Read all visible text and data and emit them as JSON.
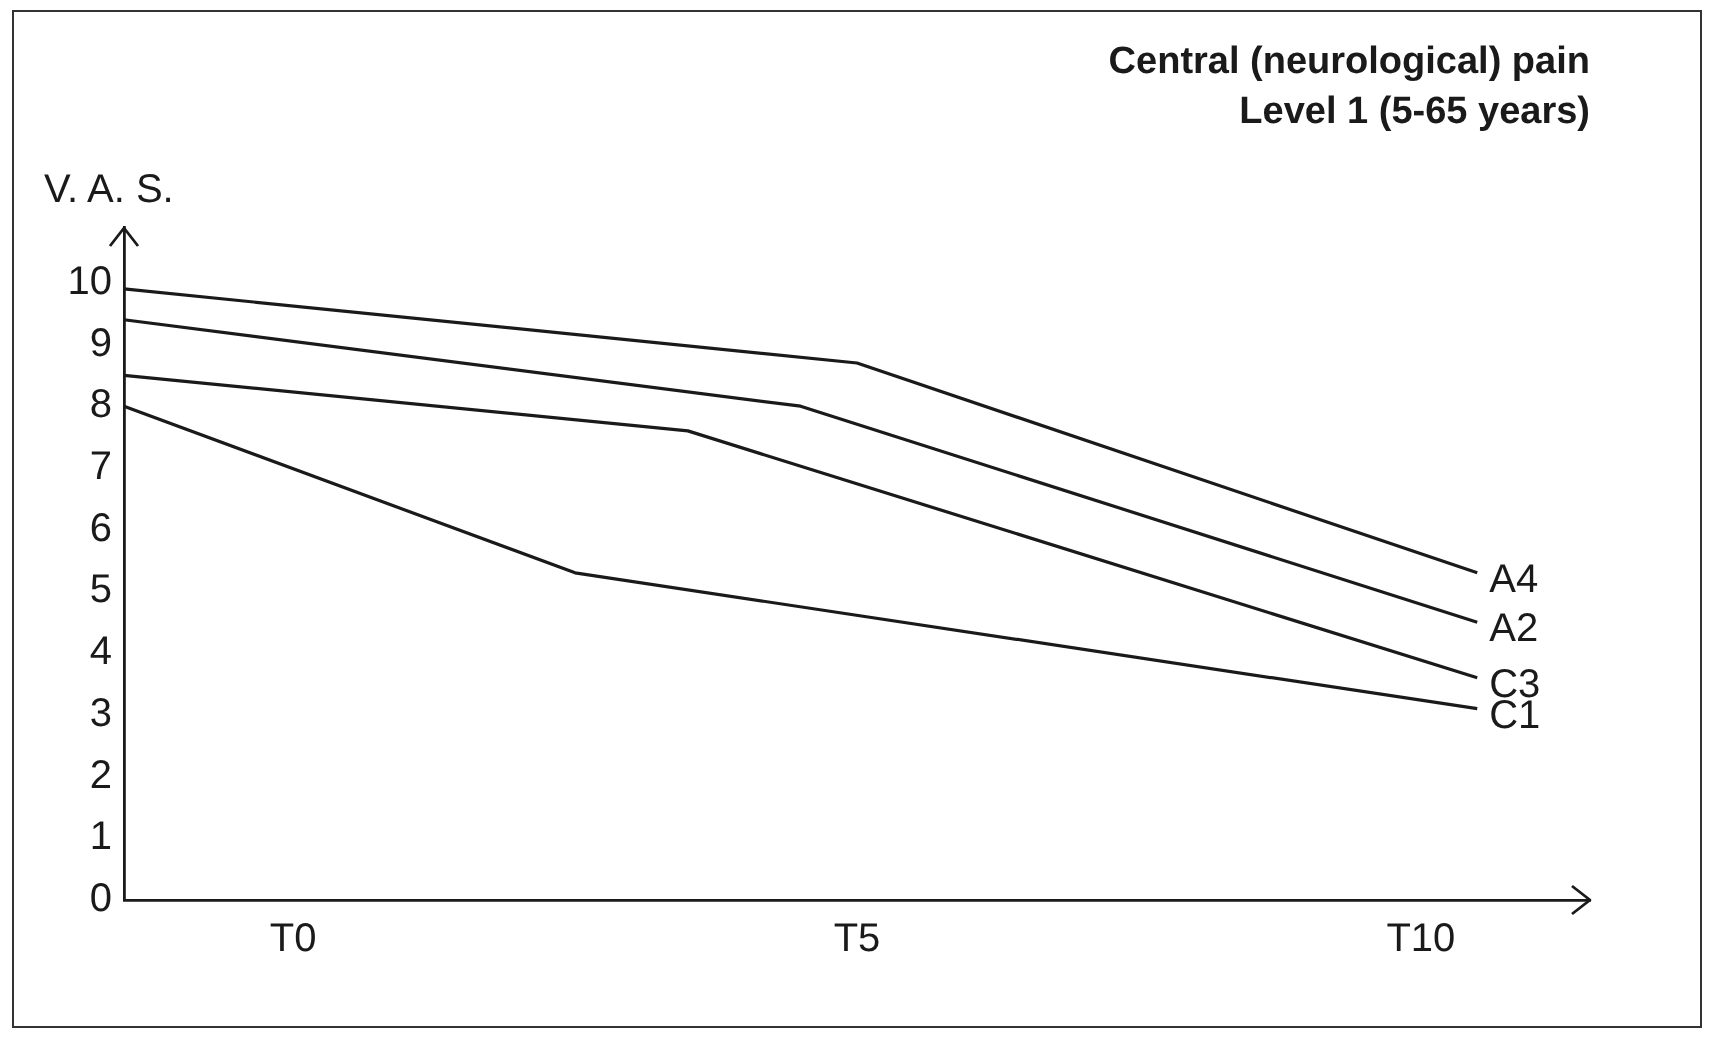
{
  "chart_data": {
    "type": "line",
    "title": "Central (neurological) pain",
    "subtitle": "Level 1 (5-65 years)",
    "ylabel": "V. A. S.",
    "categories": [
      null,
      null,
      null,
      "T0",
      null,
      null,
      null,
      null,
      null,
      null,
      null,
      null,
      null,
      "T5",
      null,
      null,
      null,
      null,
      null,
      null,
      null,
      null,
      null,
      "T10",
      null,
      null,
      null
    ],
    "ylim": [
      0,
      10.9
    ],
    "yticks": [
      0,
      1,
      2,
      3,
      4,
      5,
      6,
      7,
      8,
      9,
      10
    ],
    "grid": false,
    "legend": false,
    "marker": "none",
    "line_style": "solid",
    "series": [
      {
        "name": "A4",
        "color": "#1a1a1a",
        "values": [
          9.9,
          null,
          null,
          null,
          null,
          null,
          null,
          null,
          null,
          null,
          null,
          null,
          null,
          8.7,
          null,
          null,
          null,
          null,
          null,
          null,
          null,
          null,
          null,
          null,
          5.3,
          null,
          null
        ]
      },
      {
        "name": "A2",
        "color": "#1a1a1a",
        "values": [
          9.4,
          null,
          null,
          null,
          null,
          null,
          null,
          null,
          null,
          null,
          null,
          null,
          8.0,
          null,
          null,
          null,
          null,
          null,
          null,
          null,
          null,
          null,
          null,
          null,
          4.5,
          null,
          null
        ]
      },
      {
        "name": "C3",
        "color": "#1a1a1a",
        "values": [
          8.5,
          null,
          null,
          null,
          null,
          null,
          null,
          null,
          null,
          null,
          7.6,
          null,
          null,
          null,
          null,
          null,
          null,
          null,
          null,
          null,
          null,
          null,
          null,
          null,
          3.6,
          null,
          null
        ]
      },
      {
        "name": "C1",
        "color": "#1a1a1a",
        "values": [
          8.0,
          null,
          null,
          null,
          null,
          null,
          null,
          null,
          5.3,
          null,
          null,
          null,
          null,
          null,
          null,
          null,
          null,
          null,
          null,
          null,
          null,
          null,
          null,
          null,
          3.1,
          null,
          null
        ]
      }
    ]
  }
}
